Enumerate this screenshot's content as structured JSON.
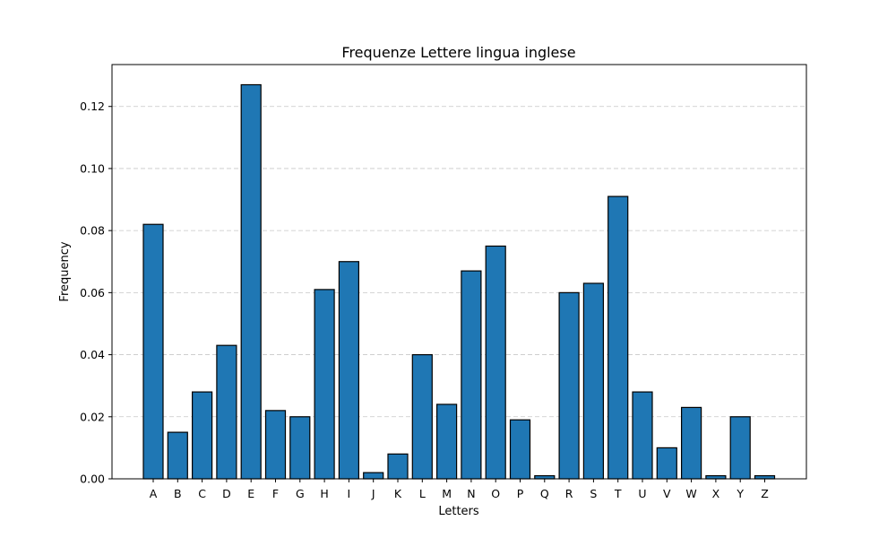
{
  "chart_data": {
    "type": "bar",
    "title": "Frequenze Lettere lingua inglese",
    "xlabel": "Letters",
    "ylabel": "Frequency",
    "categories": [
      "A",
      "B",
      "C",
      "D",
      "E",
      "F",
      "G",
      "H",
      "I",
      "J",
      "K",
      "L",
      "M",
      "N",
      "O",
      "P",
      "Q",
      "R",
      "S",
      "T",
      "U",
      "V",
      "W",
      "X",
      "Y",
      "Z"
    ],
    "values": [
      0.082,
      0.015,
      0.028,
      0.043,
      0.127,
      0.022,
      0.02,
      0.061,
      0.07,
      0.002,
      0.008,
      0.04,
      0.024,
      0.067,
      0.075,
      0.019,
      0.001,
      0.06,
      0.063,
      0.091,
      0.028,
      0.01,
      0.023,
      0.001,
      0.02,
      0.001
    ],
    "ylim": [
      0,
      0.1335
    ],
    "yticks": [
      0,
      0.02,
      0.04,
      0.06,
      0.08,
      0.1,
      0.12
    ],
    "ytick_labels": [
      "0.00",
      "0.02",
      "0.04",
      "0.06",
      "0.08",
      "0.10",
      "0.12"
    ],
    "grid": "y, dashed",
    "bar_color": "#1f77b4",
    "edge_color": "#000000"
  }
}
